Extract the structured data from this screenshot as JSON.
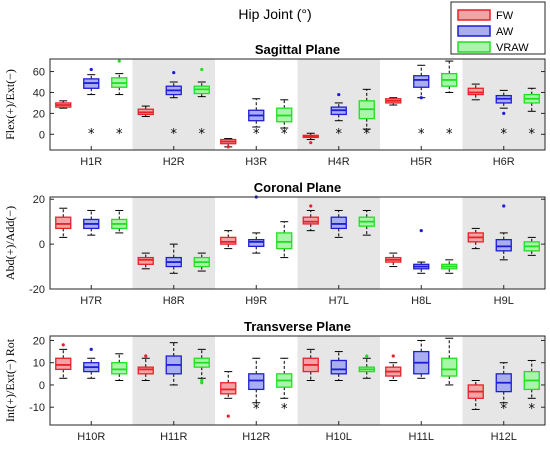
{
  "figure": {
    "title": "Hip Joint (°)"
  },
  "legend": {
    "placement": "top-right",
    "items": [
      {
        "label": "FW",
        "color": "#e8222a",
        "fill": "#f4a3a6"
      },
      {
        "label": "AW",
        "color": "#1d1dd6",
        "fill": "#a9aef0"
      },
      {
        "label": "VRAW",
        "color": "#1fe01f",
        "fill": "#a9f5a9"
      }
    ]
  },
  "chart_data": [
    {
      "type": "box",
      "title": "Sagittal Plane",
      "ylabel": "Flex(+)/Ext(−)",
      "ylim": [
        -15,
        72
      ],
      "yticks": [
        0,
        20,
        40,
        60
      ],
      "shaded_groups": [
        1,
        3,
        5
      ],
      "categories": [
        "H1R",
        "H2R",
        "H3R",
        "H4R",
        "H5R",
        "H6R"
      ],
      "series": [
        {
          "name": "FW",
          "boxes": [
            {
              "min": 25,
              "q1": 26,
              "median": 28,
              "q3": 30,
              "max": 32,
              "outliers": [],
              "sig": false
            },
            {
              "min": 17,
              "q1": 19,
              "median": 21,
              "q3": 24,
              "max": 27,
              "outliers": [],
              "sig": false
            },
            {
              "min": -12,
              "q1": -9,
              "median": -7,
              "q3": -5,
              "max": -4,
              "outliers": [
                -12
              ],
              "sig": false
            },
            {
              "min": -5,
              "q1": -3,
              "median": -2,
              "q3": -1,
              "max": 1,
              "outliers": [
                -8
              ],
              "sig": false
            },
            {
              "min": 28,
              "q1": 30,
              "median": 32,
              "q3": 34,
              "max": 35,
              "outliers": [],
              "sig": false
            },
            {
              "min": 33,
              "q1": 38,
              "median": 40,
              "q3": 44,
              "max": 48,
              "outliers": [],
              "sig": false
            }
          ]
        },
        {
          "name": "AW",
          "boxes": [
            {
              "min": 38,
              "q1": 44,
              "median": 49,
              "q3": 53,
              "max": 57,
              "outliers": [
                62
              ],
              "sig": true
            },
            {
              "min": 35,
              "q1": 38,
              "median": 42,
              "q3": 46,
              "max": 50,
              "outliers": [
                59
              ],
              "sig": true
            },
            {
              "min": 7,
              "q1": 13,
              "median": 18,
              "q3": 23,
              "max": 34,
              "outliers": [],
              "sig": true
            },
            {
              "min": 13,
              "q1": 19,
              "median": 23,
              "q3": 26,
              "max": 30,
              "outliers": [
                38
              ],
              "sig": true
            },
            {
              "min": 35,
              "q1": 45,
              "median": 52,
              "q3": 56,
              "max": 66,
              "outliers": [
                35
              ],
              "sig": true
            },
            {
              "min": 25,
              "q1": 30,
              "median": 34,
              "q3": 37,
              "max": 42,
              "outliers": [
                20
              ],
              "sig": true
            }
          ]
        },
        {
          "name": "VRAW",
          "boxes": [
            {
              "min": 38,
              "q1": 45,
              "median": 49,
              "q3": 54,
              "max": 58,
              "outliers": [
                70
              ],
              "sig": true
            },
            {
              "min": 36,
              "q1": 39,
              "median": 43,
              "q3": 46,
              "max": 50,
              "outliers": [
                62
              ],
              "sig": true
            },
            {
              "min": 6,
              "q1": 12,
              "median": 18,
              "q3": 25,
              "max": 33,
              "outliers": [],
              "sig": true
            },
            {
              "min": 5,
              "q1": 15,
              "median": 24,
              "q3": 32,
              "max": 43,
              "outliers": [],
              "sig": true
            },
            {
              "min": 40,
              "q1": 46,
              "median": 52,
              "q3": 58,
              "max": 70,
              "outliers": [],
              "sig": true
            },
            {
              "min": 22,
              "q1": 30,
              "median": 34,
              "q3": 38,
              "max": 44,
              "outliers": [],
              "sig": true
            }
          ]
        }
      ]
    },
    {
      "type": "box",
      "title": "Coronal Plane",
      "ylabel": "Abd(+)/Add(−)",
      "ylim": [
        -20,
        21
      ],
      "yticks": [
        -20,
        0,
        20
      ],
      "shaded_groups": [
        1,
        3,
        5
      ],
      "categories": [
        "H7R",
        "H8R",
        "H9R",
        "H7L",
        "H8L",
        "H9L"
      ],
      "series": [
        {
          "name": "FW",
          "boxes": [
            {
              "min": 3,
              "q1": 7,
              "median": 9,
              "q3": 12,
              "max": 16,
              "outliers": [],
              "sig": false
            },
            {
              "min": -11,
              "q1": -9,
              "median": -7,
              "q3": -6,
              "max": -4,
              "outliers": [],
              "sig": false
            },
            {
              "min": -2,
              "q1": 0,
              "median": 1,
              "q3": 3,
              "max": 6,
              "outliers": [],
              "sig": false
            },
            {
              "min": 6,
              "q1": 9,
              "median": 10,
              "q3": 12,
              "max": 15,
              "outliers": [
                17
              ],
              "sig": false
            },
            {
              "min": -10,
              "q1": -8,
              "median": -7,
              "q3": -6,
              "max": -4,
              "outliers": [],
              "sig": false
            },
            {
              "min": -2,
              "q1": 1,
              "median": 3,
              "q3": 5,
              "max": 7,
              "outliers": [],
              "sig": false
            }
          ]
        },
        {
          "name": "AW",
          "boxes": [
            {
              "min": 4,
              "q1": 7,
              "median": 9,
              "q3": 11,
              "max": 15,
              "outliers": [],
              "sig": false
            },
            {
              "min": -13,
              "q1": -10,
              "median": -8,
              "q3": -6,
              "max": 0,
              "outliers": [],
              "sig": false
            },
            {
              "min": -4,
              "q1": -1,
              "median": 1,
              "q3": 2,
              "max": 5,
              "outliers": [
                21
              ],
              "sig": false
            },
            {
              "min": 3,
              "q1": 7,
              "median": 9,
              "q3": 12,
              "max": 15,
              "outliers": [],
              "sig": false
            },
            {
              "min": -13,
              "q1": -11,
              "median": -10,
              "q3": -9,
              "max": -8,
              "outliers": [
                6
              ],
              "sig": false
            },
            {
              "min": -7,
              "q1": -3,
              "median": -1,
              "q3": 2,
              "max": 5,
              "outliers": [
                17
              ],
              "sig": false
            }
          ]
        },
        {
          "name": "VRAW",
          "boxes": [
            {
              "min": 5,
              "q1": 7,
              "median": 9,
              "q3": 11,
              "max": 15,
              "outliers": [],
              "sig": false
            },
            {
              "min": -12,
              "q1": -10,
              "median": -8,
              "q3": -6,
              "max": -4,
              "outliers": [],
              "sig": false
            },
            {
              "min": -6,
              "q1": -2,
              "median": 1,
              "q3": 5,
              "max": 10,
              "outliers": [],
              "sig": false
            },
            {
              "min": 4,
              "q1": 8,
              "median": 10,
              "q3": 12,
              "max": 15,
              "outliers": [],
              "sig": false
            },
            {
              "min": -13,
              "q1": -11,
              "median": -10,
              "q3": -9,
              "max": -7,
              "outliers": [],
              "sig": false
            },
            {
              "min": -5,
              "q1": -3,
              "median": -1,
              "q3": 1,
              "max": 3,
              "outliers": [],
              "sig": false
            }
          ]
        }
      ]
    },
    {
      "type": "box",
      "title": "Transverse Plane",
      "ylabel": "Int(+)/Ext(−) Rot",
      "ylim": [
        -18,
        22
      ],
      "yticks": [
        -10,
        0,
        10,
        20
      ],
      "shaded_groups": [
        1,
        3,
        5
      ],
      "categories": [
        "H10R",
        "H11R",
        "H12R",
        "H10L",
        "H11L",
        "H12L"
      ],
      "series": [
        {
          "name": "FW",
          "boxes": [
            {
              "min": 3,
              "q1": 7,
              "median": 9,
              "q3": 12,
              "max": 16,
              "outliers": [
                18
              ],
              "sig": false
            },
            {
              "min": 2,
              "q1": 5,
              "median": 7,
              "q3": 8,
              "max": 12,
              "outliers": [
                13
              ],
              "sig": false
            },
            {
              "min": -6,
              "q1": -4,
              "median": -2,
              "q3": 1,
              "max": 6,
              "outliers": [
                -14
              ],
              "sig": false
            },
            {
              "min": 2,
              "q1": 6,
              "median": 9,
              "q3": 12,
              "max": 16,
              "outliers": [],
              "sig": false
            },
            {
              "min": 2,
              "q1": 4,
              "median": 6,
              "q3": 8,
              "max": 10,
              "outliers": [
                13
              ],
              "sig": false
            },
            {
              "min": -11,
              "q1": -6,
              "median": -3,
              "q3": 0,
              "max": 2,
              "outliers": [],
              "sig": false
            }
          ]
        },
        {
          "name": "AW",
          "boxes": [
            {
              "min": 3,
              "q1": 6,
              "median": 8,
              "q3": 10,
              "max": 12,
              "outliers": [
                16
              ],
              "sig": false
            },
            {
              "min": 0,
              "q1": 5,
              "median": 9,
              "q3": 13,
              "max": 19,
              "outliers": [],
              "sig": false
            },
            {
              "min": -8,
              "q1": -2,
              "median": 2,
              "q3": 5,
              "max": 12,
              "outliers": [],
              "sig": true
            },
            {
              "min": 2,
              "q1": 5,
              "median": 7,
              "q3": 11,
              "max": 15,
              "outliers": [],
              "sig": false
            },
            {
              "min": 3,
              "q1": 5,
              "median": 10,
              "q3": 15,
              "max": 20,
              "outliers": [],
              "sig": false
            },
            {
              "min": -8,
              "q1": -3,
              "median": 1,
              "q3": 5,
              "max": 10,
              "outliers": [],
              "sig": true
            }
          ]
        },
        {
          "name": "VRAW",
          "boxes": [
            {
              "min": 2,
              "q1": 5,
              "median": 7,
              "q3": 10,
              "max": 14,
              "outliers": [],
              "sig": false
            },
            {
              "min": 3,
              "q1": 8,
              "median": 10,
              "q3": 12,
              "max": 16,
              "outliers": [
                1,
                2
              ],
              "sig": false
            },
            {
              "min": -6,
              "q1": -1,
              "median": 2,
              "q3": 5,
              "max": 12,
              "outliers": [],
              "sig": true
            },
            {
              "min": 3,
              "q1": 6,
              "median": 7,
              "q3": 8,
              "max": 12,
              "outliers": [
                13
              ],
              "sig": false
            },
            {
              "min": 0,
              "q1": 4,
              "median": 7,
              "q3": 12,
              "max": 21,
              "outliers": [],
              "sig": false
            },
            {
              "min": -6,
              "q1": -2,
              "median": 2,
              "q3": 6,
              "max": 11,
              "outliers": [],
              "sig": true
            }
          ]
        }
      ]
    }
  ]
}
